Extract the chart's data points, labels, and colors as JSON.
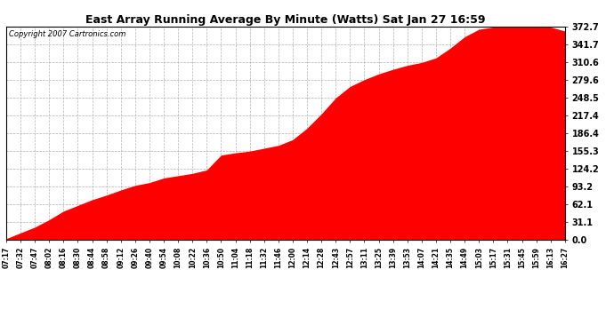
{
  "title": "East Array Running Average By Minute (Watts) Sat Jan 27 16:59",
  "copyright": "Copyright 2007 Cartronics.com",
  "fill_color": "#FF0000",
  "bg_color": "#FFFFFF",
  "plot_bg_color": "#FFFFFF",
  "grid_color": "#AAAAAA",
  "ytick_labels": [
    "0.0",
    "31.1",
    "62.1",
    "93.2",
    "124.2",
    "155.3",
    "186.4",
    "217.4",
    "248.5",
    "279.6",
    "310.6",
    "341.7",
    "372.7"
  ],
  "ytick_values": [
    0.0,
    31.1,
    62.1,
    93.2,
    124.2,
    155.3,
    186.4,
    217.4,
    248.5,
    279.6,
    310.6,
    341.7,
    372.7
  ],
  "ymax": 372.7,
  "ymin": 0.0,
  "xtick_labels": [
    "07:17",
    "07:32",
    "07:47",
    "08:02",
    "08:16",
    "08:30",
    "08:44",
    "08:58",
    "09:12",
    "09:26",
    "09:40",
    "09:54",
    "10:08",
    "10:22",
    "10:36",
    "10:50",
    "11:04",
    "11:18",
    "11:32",
    "11:46",
    "12:00",
    "12:14",
    "12:28",
    "12:43",
    "12:57",
    "13:11",
    "13:25",
    "13:39",
    "13:53",
    "14:07",
    "14:21",
    "14:35",
    "14:49",
    "15:03",
    "15:17",
    "15:31",
    "15:45",
    "15:59",
    "16:13",
    "16:27"
  ],
  "series_x": [
    0,
    1,
    2,
    3,
    4,
    5,
    6,
    7,
    8,
    9,
    10,
    11,
    12,
    13,
    14,
    15,
    16,
    17,
    18,
    19,
    20,
    21,
    22,
    23,
    24,
    25,
    26,
    27,
    28,
    29,
    30,
    31,
    32,
    33,
    34,
    35,
    36,
    37,
    38,
    39
  ],
  "series_y": [
    2.0,
    12.0,
    22.0,
    35.0,
    50.0,
    60.0,
    70.0,
    78.0,
    87.0,
    95.0,
    100.0,
    108.0,
    112.0,
    116.0,
    122.0,
    148.0,
    152.0,
    155.0,
    160.0,
    165.0,
    175.0,
    195.0,
    220.0,
    248.0,
    268.0,
    280.0,
    290.0,
    298.0,
    305.0,
    310.0,
    318.0,
    335.0,
    355.0,
    368.0,
    372.0,
    372.5,
    372.7,
    372.5,
    372.0,
    365.0
  ],
  "title_fontsize": 9,
  "copyright_fontsize": 6,
  "ytick_fontsize": 7,
  "xtick_fontsize": 5.5
}
